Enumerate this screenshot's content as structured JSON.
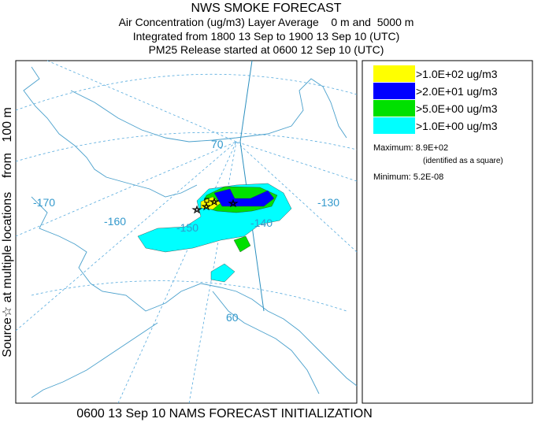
{
  "header": {
    "title": "NWS SMOKE FORECAST",
    "lines": [
      "Air Concentration (ug/m3) Layer Average    0 m and  5000 m",
      "Integrated from 1800 13 Sep to 1900 13 Sep 10 (UTC)",
      "PM25 Release started at 0600 12 Sep 10 (UTC)"
    ]
  },
  "side_label": "Source☆ at multiple locations    from   100 m",
  "footer": "0600 13 Sep 10 NAMS FORECAST INITIALIZATION",
  "legend": {
    "items": [
      {
        "label": ">1.0E+02 ug/m3",
        "color": "#ffff00"
      },
      {
        "label": ">2.0E+01 ug/m3",
        "color": "#0000ff"
      },
      {
        "label": ">5.0E+00 ug/m3",
        "color": "#00e000"
      },
      {
        "label": ">1.0E+00 ug/m3",
        "color": "#00ffff"
      }
    ],
    "maximum": "Maximum: 8.9E+02",
    "maximum_note": "(identified as a square)",
    "minimum": "Minimum: 5.2E-08"
  },
  "map": {
    "labels": [
      "-170",
      "-160",
      "-150",
      "-140",
      "-130",
      "70",
      "60"
    ]
  }
}
